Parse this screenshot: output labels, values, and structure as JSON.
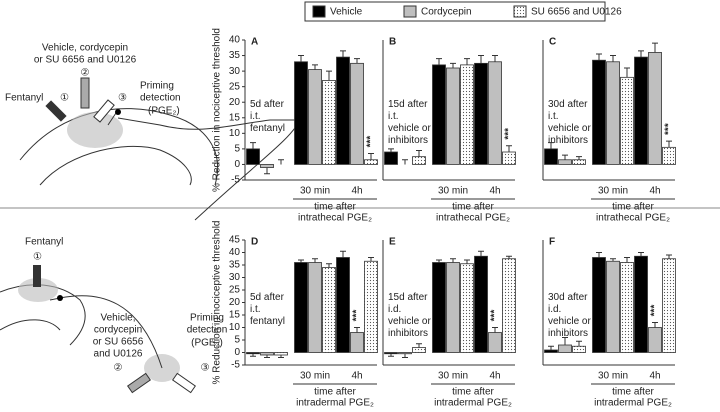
{
  "legend_title": null,
  "diagrams": {
    "top": [
      "Vehicle, cordycepin",
      "or SU 6656 and U0126",
      "②",
      "Fentanyl",
      "①",
      "③",
      "Priming",
      "detection",
      "(PGE₂)"
    ],
    "bottom": [
      "Fentanyl",
      "①",
      "Vehicle,",
      "cordycepin",
      "or SU 6656",
      "and U0126",
      "②",
      "Priming",
      "detection",
      "(PGE₂)",
      "③"
    ]
  },
  "chart_data": [
    {
      "type": "bar",
      "panel": "A",
      "note": [
        "5d after",
        "i.t.",
        "fentanyl"
      ],
      "ylabel": "% Reduction in nociceptive threshold",
      "xlabel": [
        "time after",
        "intrathecal PGE₂"
      ],
      "categories": [
        null,
        "30 min",
        "4h"
      ],
      "ylim": [
        -5,
        40
      ],
      "yticks": [
        -5,
        0,
        5,
        10,
        15,
        20,
        25,
        30,
        35,
        40
      ],
      "series": [
        {
          "name": "Vehicle",
          "color": "#000000",
          "values": [
            5,
            33,
            34.5
          ],
          "errors": [
            2,
            2,
            2
          ],
          "significance": [
            null,
            null,
            null
          ]
        },
        {
          "name": "Cordycepin",
          "color": "#bfbfbf",
          "values": [
            -1,
            30.5,
            32.5
          ],
          "errors": [
            2,
            1.5,
            1.5
          ],
          "significance": [
            null,
            null,
            null
          ]
        },
        {
          "name": "SU 6656 and U0126",
          "color": "#ffffff",
          "pattern": "dots",
          "values": [
            0,
            27,
            1.5
          ],
          "errors": [
            1.5,
            3,
            2
          ],
          "significance": [
            null,
            null,
            "***"
          ]
        }
      ]
    },
    {
      "type": "bar",
      "panel": "B",
      "note": [
        "15d after",
        "i.t.",
        "vehicle or",
        "inhibitors"
      ],
      "xlabel": [
        "time after",
        "intrathecal PGE₂"
      ],
      "categories": [
        null,
        "30 min",
        "4h"
      ],
      "ylim": [
        -5,
        40
      ],
      "series": [
        {
          "name": "Vehicle",
          "color": "#000000",
          "values": [
            4,
            32,
            32.5
          ],
          "errors": [
            1,
            2,
            2.5
          ],
          "significance": [
            null,
            null,
            null
          ]
        },
        {
          "name": "Cordycepin",
          "color": "#bfbfbf",
          "values": [
            0,
            31,
            33
          ],
          "errors": [
            1.5,
            1.5,
            2
          ],
          "significance": [
            null,
            null,
            null
          ]
        },
        {
          "name": "SU 6656 and U0126",
          "color": "#ffffff",
          "pattern": "dots",
          "values": [
            2.5,
            32,
            4
          ],
          "errors": [
            2,
            2,
            2
          ],
          "significance": [
            null,
            null,
            "***"
          ]
        }
      ]
    },
    {
      "type": "bar",
      "panel": "C",
      "note": [
        "30d after",
        "i.t.",
        "vehicle or",
        "inhibitors"
      ],
      "xlabel": [
        "time after",
        "intrathecal PGE₂"
      ],
      "categories": [
        null,
        "30 min",
        "4h"
      ],
      "ylim": [
        -5,
        40
      ],
      "series": [
        {
          "name": "Vehicle",
          "color": "#000000",
          "values": [
            5,
            33.5,
            34.5
          ],
          "errors": [
            2,
            2,
            2
          ],
          "significance": [
            null,
            null,
            null
          ]
        },
        {
          "name": "Cordycepin",
          "color": "#bfbfbf",
          "values": [
            1.5,
            33,
            36
          ],
          "errors": [
            1.5,
            2,
            3
          ],
          "significance": [
            null,
            null,
            null
          ]
        },
        {
          "name": "SU 6656 and U0126",
          "color": "#ffffff",
          "pattern": "dots",
          "values": [
            1.5,
            28,
            5.5
          ],
          "errors": [
            1,
            3,
            2
          ],
          "significance": [
            null,
            null,
            "***"
          ]
        }
      ]
    },
    {
      "type": "bar",
      "panel": "D",
      "note": [
        "5d after",
        "i.t.",
        "fentanyl"
      ],
      "ylabel": "% Reduction in nociceptive threshold",
      "xlabel": [
        "time after",
        "intradermal PGE₂"
      ],
      "categories": [
        null,
        "30 min",
        "4h"
      ],
      "ylim": [
        -5,
        45
      ],
      "yticks": [
        -5,
        0,
        5,
        10,
        15,
        20,
        25,
        30,
        35,
        40,
        45
      ],
      "series": [
        {
          "name": "Vehicle",
          "color": "#000000",
          "values": [
            -0.5,
            36,
            38
          ],
          "errors": [
            1,
            1,
            2.5
          ],
          "significance": [
            null,
            null,
            null
          ]
        },
        {
          "name": "Cordycepin",
          "color": "#bfbfbf",
          "values": [
            -1,
            36,
            8
          ],
          "errors": [
            1,
            1.5,
            2
          ],
          "significance": [
            null,
            null,
            "***"
          ]
        },
        {
          "name": "SU 6656 and U0126",
          "color": "#ffffff",
          "pattern": "dots",
          "values": [
            -1,
            34,
            36.5
          ],
          "errors": [
            1,
            1.5,
            1.5
          ],
          "significance": [
            null,
            null,
            null
          ]
        }
      ]
    },
    {
      "type": "bar",
      "panel": "E",
      "note": [
        "15d after",
        "i.d.",
        "vehicle or",
        "inhibitors"
      ],
      "xlabel": [
        "time after",
        "intradermal PGE₂"
      ],
      "categories": [
        null,
        "30 min",
        "4h"
      ],
      "ylim": [
        -5,
        45
      ],
      "series": [
        {
          "name": "Vehicle",
          "color": "#000000",
          "values": [
            -0.5,
            36,
            38.5
          ],
          "errors": [
            1,
            1,
            2
          ],
          "significance": [
            null,
            null,
            null
          ]
        },
        {
          "name": "Cordycepin",
          "color": "#bfbfbf",
          "values": [
            -0.5,
            36,
            8
          ],
          "errors": [
            1.5,
            1.5,
            2
          ],
          "significance": [
            null,
            null,
            "***"
          ]
        },
        {
          "name": "SU 6656 and U0126",
          "color": "#ffffff",
          "pattern": "dots",
          "values": [
            2,
            35.5,
            37.5
          ],
          "errors": [
            1.5,
            1.5,
            1
          ],
          "significance": [
            null,
            null,
            null
          ]
        }
      ]
    },
    {
      "type": "bar",
      "panel": "F",
      "note": [
        "30d after",
        "i.d.",
        "vehicle or",
        "inhibitors"
      ],
      "xlabel": [
        "time after",
        "intradermal PGE₂"
      ],
      "categories": [
        null,
        "30 min",
        "4h"
      ],
      "ylim": [
        -5,
        45
      ],
      "series": [
        {
          "name": "Vehicle",
          "color": "#000000",
          "values": [
            1,
            38,
            38.5
          ],
          "errors": [
            1.5,
            2,
            1.5
          ],
          "significance": [
            null,
            null,
            null
          ]
        },
        {
          "name": "Cordycepin",
          "color": "#bfbfbf",
          "values": [
            3,
            36.5,
            10
          ],
          "errors": [
            3,
            1,
            2
          ],
          "significance": [
            null,
            null,
            "***"
          ]
        },
        {
          "name": "SU 6656 and U0126",
          "color": "#ffffff",
          "pattern": "dots",
          "values": [
            2.5,
            36,
            37.5
          ],
          "errors": [
            2,
            2,
            1.5
          ],
          "significance": [
            null,
            null,
            null
          ]
        }
      ]
    }
  ]
}
